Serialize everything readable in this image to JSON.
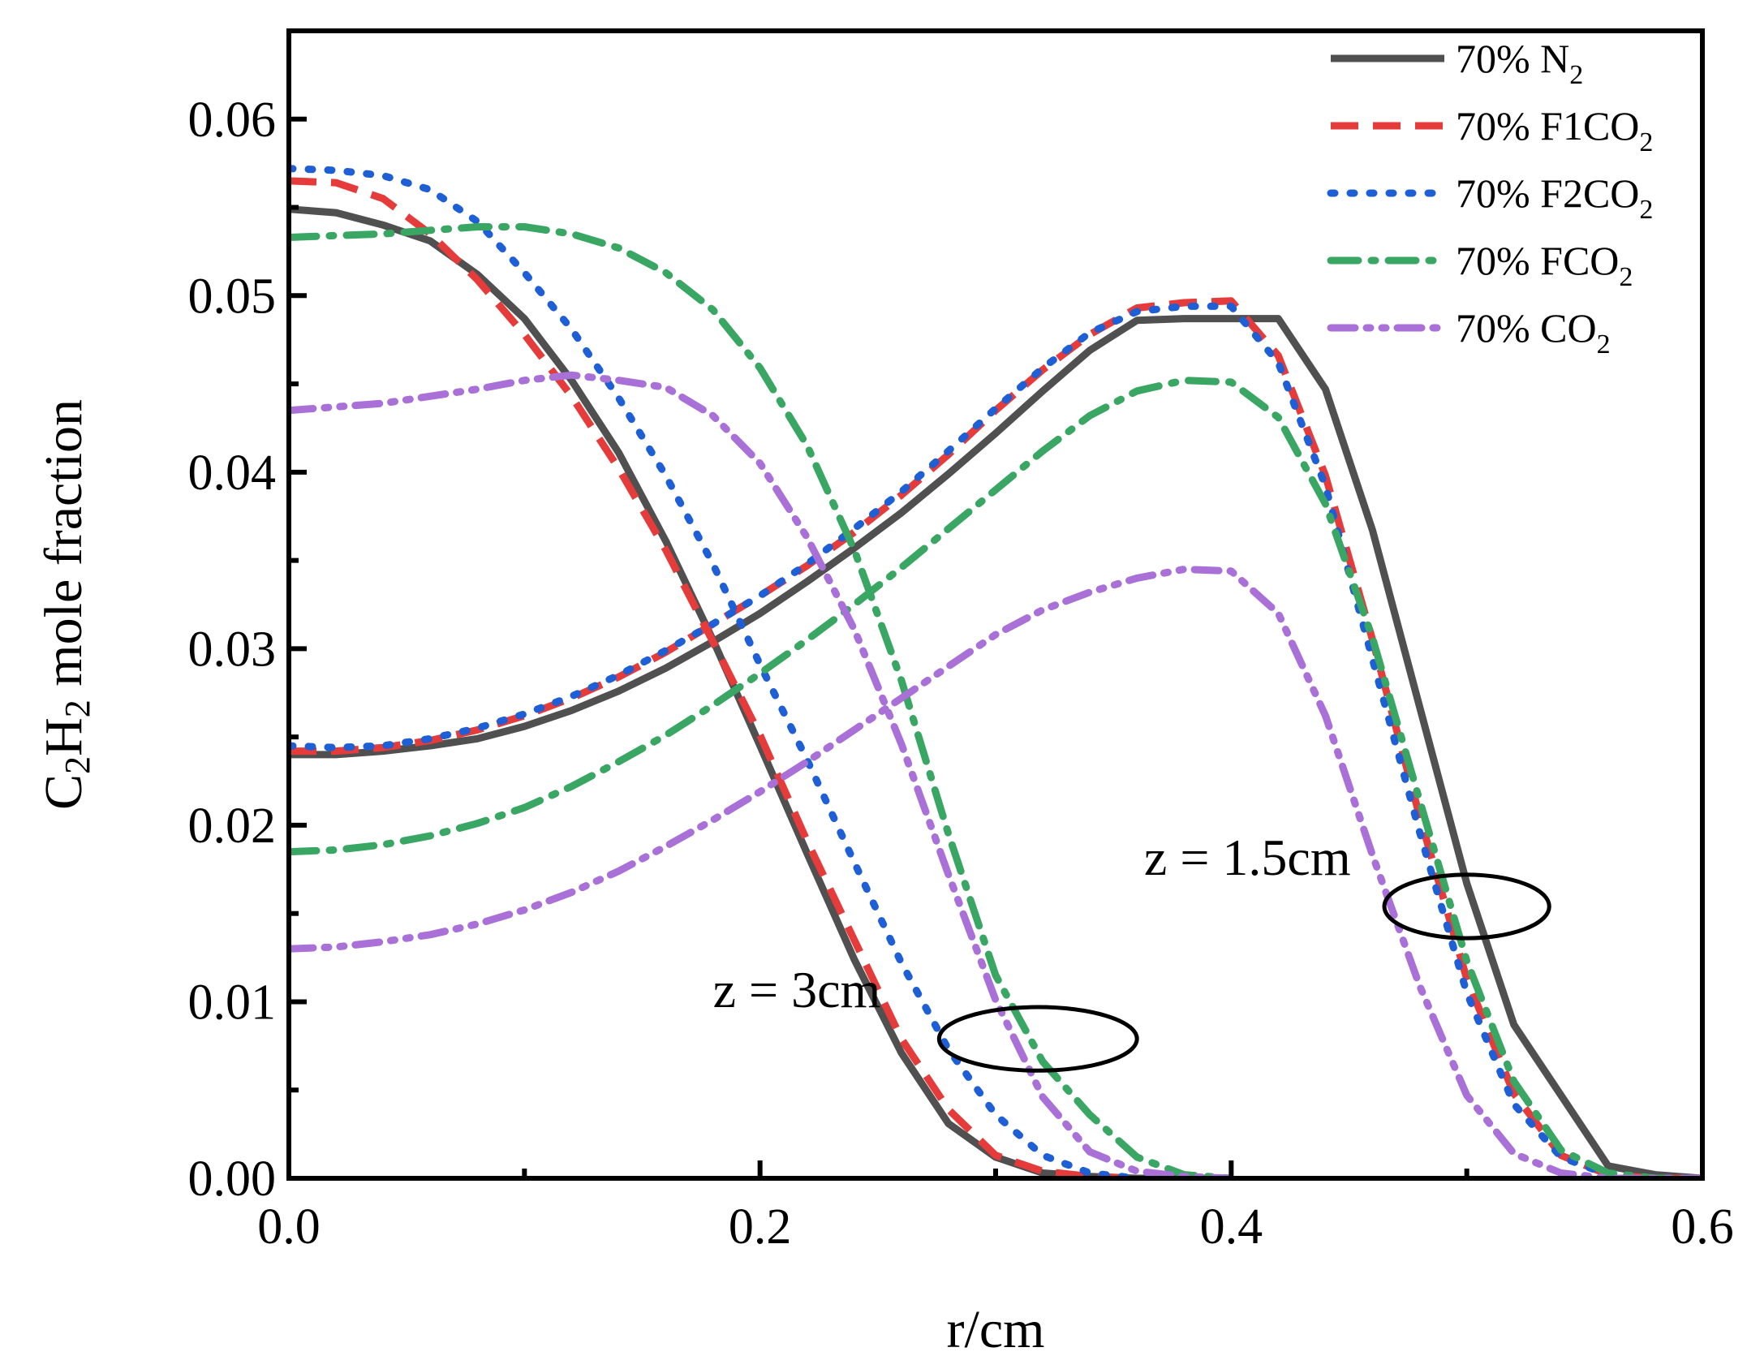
{
  "chart_data": {
    "type": "line",
    "title": "",
    "xlabel": "r/cm",
    "ylabel": {
      "base": "C",
      "sub1": "2",
      "mid": "H",
      "sub2": "2",
      "rest": " mole fraction"
    },
    "xlim": [
      0,
      0.6
    ],
    "ylim": [
      0,
      0.065
    ],
    "xticks": [
      0,
      0.2,
      0.4,
      0.6
    ],
    "xtick_labels": [
      "0.0",
      "0.2",
      "0.4",
      "0.6"
    ],
    "yticks": [
      0,
      0.01,
      0.02,
      0.03,
      0.04,
      0.05,
      0.06
    ],
    "ytick_labels": [
      "0.00",
      "0.01",
      "0.02",
      "0.03",
      "0.04",
      "0.05",
      "0.06"
    ],
    "grid": false,
    "legend_position": "top-right",
    "series": [
      {
        "name": "70% N2",
        "label_main": "70% N",
        "label_sub": "2",
        "color": "#505050",
        "dash": "solid",
        "profiles": [
          {
            "z": "3cm",
            "x": [
              0,
              0.02,
              0.04,
              0.06,
              0.08,
              0.1,
              0.12,
              0.14,
              0.16,
              0.18,
              0.2,
              0.22,
              0.24,
              0.26,
              0.28,
              0.3,
              0.32,
              0.34,
              0.36,
              0.38
            ],
            "y": [
              0.0549,
              0.0547,
              0.054,
              0.0531,
              0.0512,
              0.0487,
              0.0452,
              0.0411,
              0.0361,
              0.0305,
              0.0245,
              0.0184,
              0.0124,
              0.0071,
              0.0031,
              0.0012,
              0.0003,
              0.0001,
              0.0,
              0.0
            ]
          },
          {
            "z": "1.5cm",
            "x": [
              0,
              0.02,
              0.04,
              0.06,
              0.08,
              0.1,
              0.12,
              0.14,
              0.16,
              0.18,
              0.2,
              0.22,
              0.24,
              0.26,
              0.28,
              0.3,
              0.32,
              0.34,
              0.36,
              0.38,
              0.4,
              0.42,
              0.44,
              0.46,
              0.48,
              0.5,
              0.52,
              0.54,
              0.56,
              0.58,
              0.6
            ],
            "y": [
              0.024,
              0.024,
              0.0242,
              0.0245,
              0.0249,
              0.0256,
              0.0265,
              0.0276,
              0.0289,
              0.0304,
              0.032,
              0.0338,
              0.0357,
              0.0377,
              0.0399,
              0.0422,
              0.0446,
              0.0469,
              0.0486,
              0.0487,
              0.0487,
              0.0487,
              0.0447,
              0.0367,
              0.0267,
              0.0167,
              0.0087,
              0.0047,
              0.0007,
              0.0002,
              0.0
            ]
          }
        ]
      },
      {
        "name": "70% F1CO2",
        "label_main": "70% F1CO",
        "label_sub": "2",
        "color": "#e53b3b",
        "dash": "dash",
        "profiles": [
          {
            "z": "3cm",
            "x": [
              0,
              0.02,
              0.04,
              0.06,
              0.08,
              0.1,
              0.12,
              0.14,
              0.16,
              0.18,
              0.2,
              0.22,
              0.24,
              0.26,
              0.28,
              0.3,
              0.32,
              0.34,
              0.36
            ],
            "y": [
              0.0565,
              0.0564,
              0.0555,
              0.0535,
              0.0509,
              0.0478,
              0.0443,
              0.0402,
              0.0356,
              0.0304,
              0.0251,
              0.0191,
              0.0135,
              0.0079,
              0.0039,
              0.0013,
              0.0004,
              0.0001,
              0.0
            ]
          },
          {
            "z": "1.5cm",
            "x": [
              0,
              0.02,
              0.04,
              0.06,
              0.08,
              0.1,
              0.12,
              0.14,
              0.16,
              0.18,
              0.2,
              0.22,
              0.24,
              0.26,
              0.28,
              0.3,
              0.32,
              0.34,
              0.36,
              0.38,
              0.4,
              0.42,
              0.44,
              0.46,
              0.48,
              0.5,
              0.52,
              0.54,
              0.56,
              0.58,
              0.6
            ],
            "y": [
              0.0242,
              0.0242,
              0.0244,
              0.0248,
              0.0254,
              0.0262,
              0.0272,
              0.0284,
              0.0298,
              0.0314,
              0.033,
              0.0347,
              0.0366,
              0.0387,
              0.041,
              0.0435,
              0.0458,
              0.0478,
              0.0493,
              0.0496,
              0.0497,
              0.0466,
              0.0398,
              0.0305,
              0.0205,
              0.0113,
              0.0048,
              0.0013,
              0.0002,
              0.0,
              0.0
            ]
          }
        ]
      },
      {
        "name": "70% F2CO2",
        "label_main": "70% F2CO",
        "label_sub": "2",
        "color": "#1f5fd6",
        "dash": "dot",
        "profiles": [
          {
            "z": "3cm",
            "x": [
              0,
              0.02,
              0.04,
              0.06,
              0.08,
              0.1,
              0.12,
              0.14,
              0.16,
              0.18,
              0.2,
              0.22,
              0.24,
              0.26,
              0.28,
              0.3,
              0.32,
              0.34,
              0.36
            ],
            "y": [
              0.0572,
              0.0571,
              0.0568,
              0.056,
              0.0542,
              0.0513,
              0.0481,
              0.0442,
              0.0398,
              0.0348,
              0.0291,
              0.0237,
              0.0179,
              0.0122,
              0.0073,
              0.0036,
              0.0013,
              0.0003,
              0.0
            ]
          },
          {
            "z": "1.5cm",
            "x": [
              0,
              0.02,
              0.04,
              0.06,
              0.08,
              0.1,
              0.12,
              0.14,
              0.16,
              0.18,
              0.2,
              0.22,
              0.24,
              0.26,
              0.28,
              0.3,
              0.32,
              0.34,
              0.36,
              0.38,
              0.4,
              0.42,
              0.44,
              0.46,
              0.48,
              0.5,
              0.52,
              0.54,
              0.56,
              0.58,
              0.6
            ],
            "y": [
              0.0245,
              0.0244,
              0.0245,
              0.0249,
              0.0255,
              0.0263,
              0.0273,
              0.0285,
              0.0299,
              0.0314,
              0.033,
              0.0348,
              0.0368,
              0.0389,
              0.0412,
              0.0436,
              0.0459,
              0.0479,
              0.0491,
              0.0494,
              0.0494,
              0.0462,
              0.0392,
              0.0294,
              0.0196,
              0.0105,
              0.0042,
              0.0012,
              0.0002,
              0.0,
              0.0
            ]
          }
        ]
      },
      {
        "name": "70% FCO2",
        "label_main": "70% FCO",
        "label_sub": "2",
        "color": "#3aa663",
        "dash": "dashdot",
        "profiles": [
          {
            "z": "3cm",
            "x": [
              0,
              0.02,
              0.04,
              0.06,
              0.08,
              0.1,
              0.12,
              0.14,
              0.16,
              0.18,
              0.2,
              0.22,
              0.24,
              0.26,
              0.28,
              0.3,
              0.32,
              0.34,
              0.36,
              0.38,
              0.4
            ],
            "y": [
              0.0533,
              0.0534,
              0.0535,
              0.0537,
              0.0539,
              0.0539,
              0.0535,
              0.0527,
              0.0513,
              0.0492,
              0.0459,
              0.0415,
              0.0356,
              0.0282,
              0.0195,
              0.0115,
              0.0066,
              0.0036,
              0.0012,
              0.0002,
              0.0
            ]
          },
          {
            "z": "1.5cm",
            "x": [
              0,
              0.02,
              0.04,
              0.06,
              0.08,
              0.1,
              0.12,
              0.14,
              0.16,
              0.18,
              0.2,
              0.22,
              0.24,
              0.26,
              0.28,
              0.3,
              0.32,
              0.34,
              0.36,
              0.38,
              0.4,
              0.42,
              0.44,
              0.46,
              0.48,
              0.5,
              0.52,
              0.54,
              0.56,
              0.58,
              0.6
            ],
            "y": [
              0.0185,
              0.0186,
              0.0189,
              0.0194,
              0.0201,
              0.021,
              0.0222,
              0.0236,
              0.0251,
              0.0268,
              0.0286,
              0.0305,
              0.0325,
              0.0346,
              0.0368,
              0.039,
              0.0412,
              0.0432,
              0.0446,
              0.0452,
              0.0451,
              0.0431,
              0.0382,
              0.0306,
              0.0214,
              0.0123,
              0.0055,
              0.0016,
              0.0003,
              0.0,
              0.0
            ]
          }
        ]
      },
      {
        "name": "70% CO2",
        "label_main": "70% CO",
        "label_sub": "2",
        "color": "#a970d8",
        "dash": "dashdotdot",
        "profiles": [
          {
            "z": "3cm",
            "x": [
              0,
              0.02,
              0.04,
              0.06,
              0.08,
              0.1,
              0.12,
              0.14,
              0.16,
              0.18,
              0.2,
              0.22,
              0.24,
              0.26,
              0.28,
              0.3,
              0.32,
              0.34,
              0.36,
              0.38,
              0.4
            ],
            "y": [
              0.0435,
              0.0437,
              0.0439,
              0.0443,
              0.0447,
              0.0452,
              0.0455,
              0.0452,
              0.0448,
              0.0432,
              0.0405,
              0.0363,
              0.0311,
              0.0246,
              0.0172,
              0.0101,
              0.0046,
              0.0015,
              0.0004,
              0.0001,
              0.0
            ]
          },
          {
            "z": "1.5cm",
            "x": [
              0,
              0.02,
              0.04,
              0.06,
              0.08,
              0.1,
              0.12,
              0.14,
              0.16,
              0.18,
              0.2,
              0.22,
              0.24,
              0.26,
              0.28,
              0.3,
              0.32,
              0.34,
              0.36,
              0.38,
              0.4,
              0.42,
              0.44,
              0.46,
              0.48,
              0.5,
              0.52,
              0.54,
              0.56,
              0.58,
              0.6
            ],
            "y": [
              0.013,
              0.0131,
              0.0134,
              0.0138,
              0.0144,
              0.0152,
              0.0162,
              0.0174,
              0.0188,
              0.0203,
              0.0219,
              0.0236,
              0.0254,
              0.0272,
              0.029,
              0.0308,
              0.0322,
              0.0332,
              0.034,
              0.0345,
              0.0344,
              0.032,
              0.0262,
              0.0183,
              0.0109,
              0.0047,
              0.0014,
              0.0003,
              0.0,
              0.0,
              0.0
            ]
          }
        ]
      }
    ],
    "annotations": [
      {
        "text": "z = 3cm",
        "at": [
          0.18,
          0.0097
        ],
        "ellipse_center": [
          0.318,
          0.0079
        ],
        "ellipse_radii": [
          0.042,
          0.0018
        ]
      },
      {
        "text": "z = 1.5cm",
        "at": [
          0.363,
          0.0172
        ],
        "ellipse_center": [
          0.5,
          0.0154
        ],
        "ellipse_radii": [
          0.035,
          0.0018
        ]
      }
    ]
  }
}
